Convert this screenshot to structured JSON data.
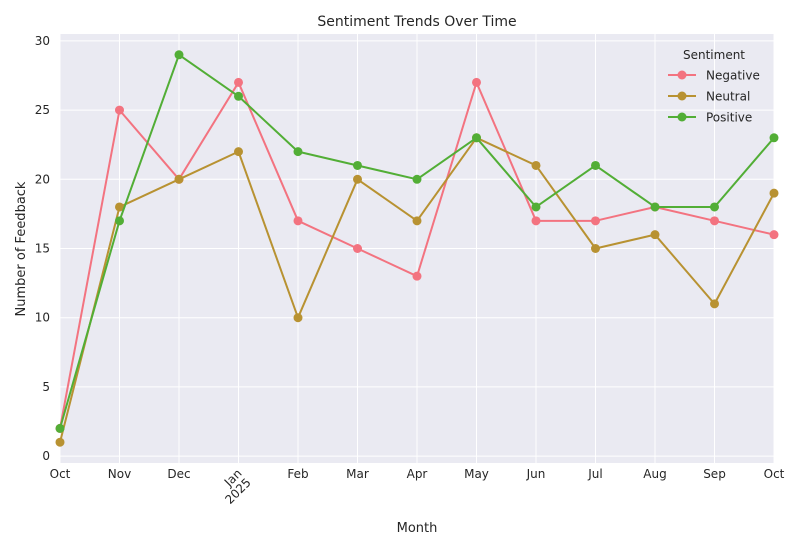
{
  "chart_data": {
    "type": "line",
    "title": "Sentiment Trends Over Time",
    "xlabel": "Month",
    "ylabel": "Number of Feedback",
    "categories": [
      "Oct",
      "Nov",
      "Dec",
      "Jan",
      "Feb",
      "Mar",
      "Apr",
      "May",
      "Jun",
      "Jul",
      "Aug",
      "Sep",
      "Oct"
    ],
    "year_annotation": "2025",
    "year_annotation_index": 3,
    "ylim": [
      -0.5,
      30.5
    ],
    "yticks": [
      0,
      5,
      10,
      15,
      20,
      25,
      30
    ],
    "grid": true,
    "legend": {
      "title": "Sentiment",
      "placement": "top-right"
    },
    "series": [
      {
        "name": "Negative",
        "color": "#f37380",
        "values": [
          2,
          25,
          20,
          27,
          17,
          15,
          13,
          27,
          17,
          17,
          18,
          17,
          16
        ]
      },
      {
        "name": "Neutral",
        "color": "#b89232",
        "values": [
          1,
          18,
          20,
          22,
          10,
          20,
          17,
          23,
          21,
          15,
          16,
          11,
          19
        ]
      },
      {
        "name": "Positive",
        "color": "#52ae36",
        "values": [
          2,
          17,
          29,
          26,
          22,
          21,
          20,
          23,
          18,
          21,
          18,
          18,
          23
        ]
      }
    ]
  },
  "colors": {
    "plot_background": "#eaeaf2",
    "grid": "#ffffff"
  }
}
